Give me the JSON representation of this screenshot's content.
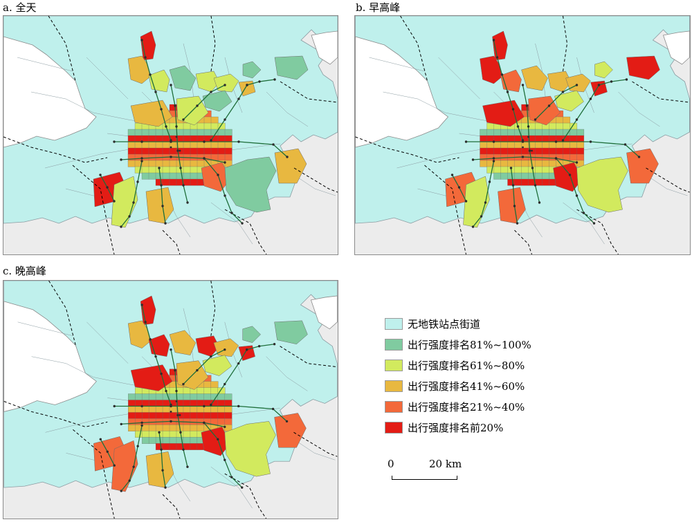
{
  "colors": {
    "background": "#ececec",
    "no_station": "#bff0ec",
    "rank_81_100": "#80cba0",
    "rank_61_80": "#d2ea5e",
    "rank_41_60": "#e8b840",
    "rank_21_40": "#f3693a",
    "rank_top20": "#e31c15",
    "subway": "#1e6e3a",
    "boundary": "#000000"
  },
  "panels": [
    {
      "title": "a. 全天"
    },
    {
      "title": "b. 早高峰"
    },
    {
      "title": "c. 晚高峰"
    }
  ],
  "legend": {
    "items": [
      {
        "label": "无地铁站点街道",
        "color_key": "no_station"
      },
      {
        "label": "出行强度排名81%~100%",
        "color_key": "rank_81_100"
      },
      {
        "label": "出行强度排名61%~80%",
        "color_key": "rank_61_80"
      },
      {
        "label": "出行强度排名41%~60%",
        "color_key": "rank_41_60"
      },
      {
        "label": "出行强度排名21%~40%",
        "color_key": "rank_21_40"
      },
      {
        "label": "出行强度排名前20%",
        "color_key": "rank_top20"
      }
    ]
  },
  "scalebar": {
    "start_label": "0",
    "end_label": "20 km"
  },
  "maps": [
    {
      "id": "a",
      "regions": [
        "rank_top20",
        "rank_41_60",
        "rank_61_80",
        "rank_81_100",
        "rank_61_80",
        "rank_61_80",
        "rank_81_100",
        "rank_81_100",
        "rank_41_60",
        "rank_81_100",
        "rank_41_60",
        "rank_61_80",
        "rank_21_40",
        "rank_81_100",
        "rank_41_60",
        "rank_top20",
        "rank_61_80",
        "rank_41_60"
      ]
    },
    {
      "id": "b",
      "regions": [
        "rank_top20",
        "rank_top20",
        "rank_21_40",
        "rank_41_60",
        "rank_41_60",
        "rank_41_60",
        "rank_61_80",
        "rank_top20",
        "rank_top20",
        "rank_61_80",
        "rank_top20",
        "rank_21_40",
        "rank_top20",
        "rank_61_80",
        "rank_21_40",
        "rank_21_40",
        "rank_61_80",
        "rank_21_40"
      ]
    },
    {
      "id": "c",
      "regions": [
        "rank_top20",
        "rank_41_60",
        "rank_top20",
        "rank_41_60",
        "rank_top20",
        "rank_41_60",
        "rank_81_100",
        "rank_81_100",
        "rank_top20",
        "rank_61_80",
        "rank_top20",
        "rank_41_60",
        "rank_top20",
        "rank_61_80",
        "rank_21_40",
        "rank_21_40",
        "rank_21_40",
        "rank_41_60"
      ]
    }
  ]
}
